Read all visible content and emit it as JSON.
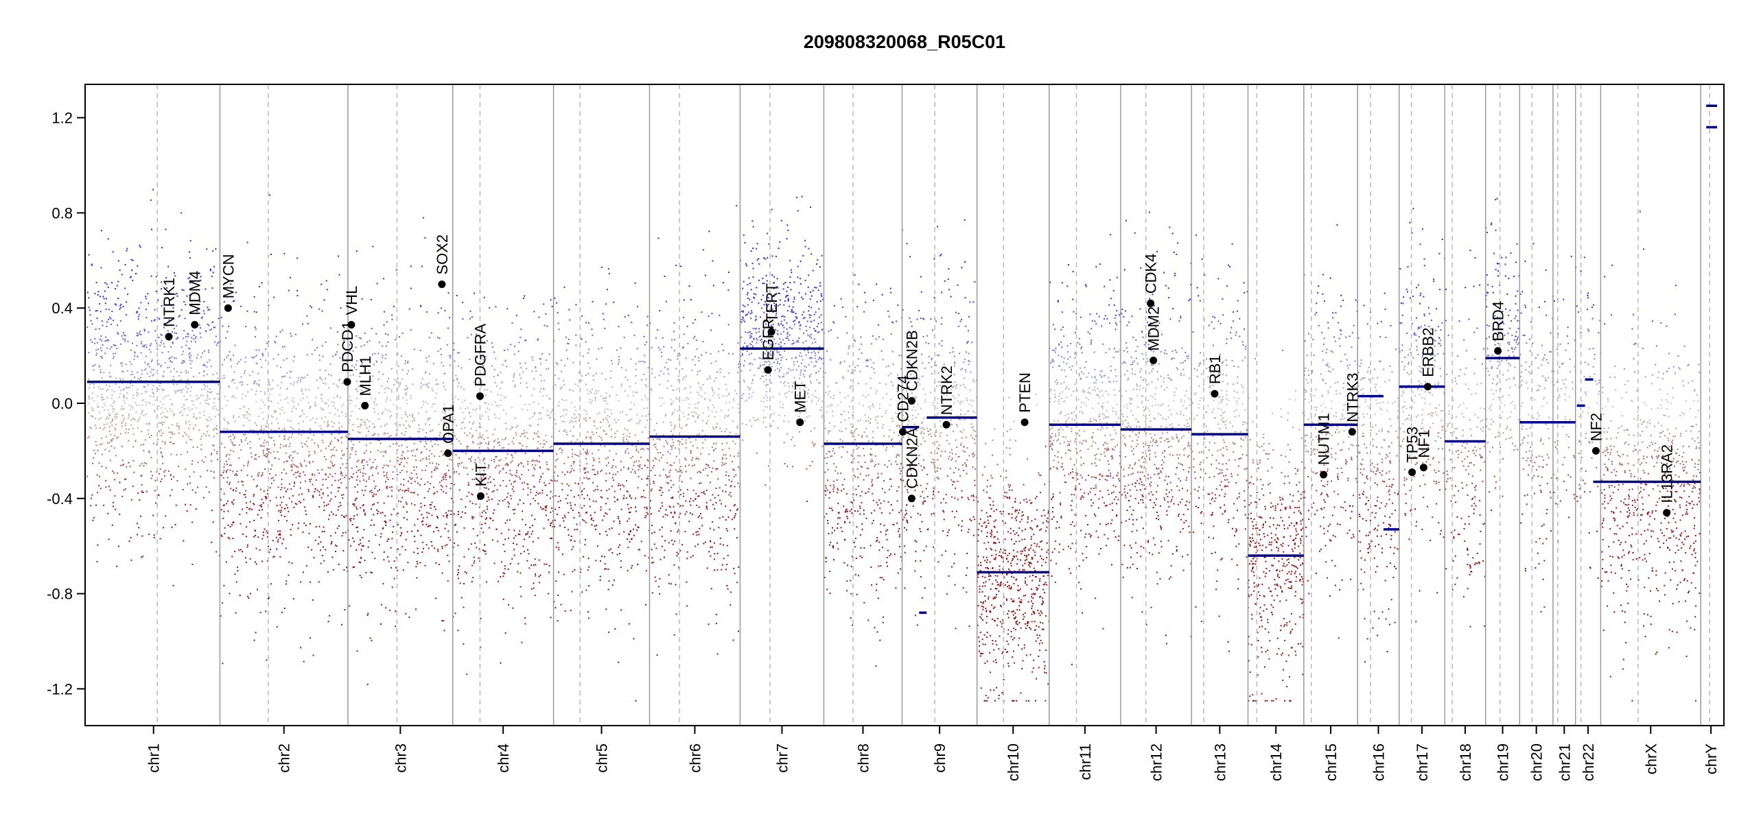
{
  "chart_data": {
    "type": "scatter",
    "title": "209808320068_R05C01",
    "xlabel": "",
    "ylabel": "",
    "ylim": [
      -1.35,
      1.35
    ],
    "y_ticks": [
      -1.2,
      -0.8,
      -0.4,
      0.0,
      0.4,
      0.8,
      1.2
    ],
    "y_tick_labels": [
      "-1.2",
      "-0.8",
      "-0.4",
      "0.0",
      "0.4",
      "0.8",
      "1.2"
    ],
    "x_range": [
      0,
      2400
    ],
    "grid": false,
    "chromosomes": [
      {
        "name": "chr1",
        "start": 0,
        "end": 195,
        "centromere": 103,
        "density": 1.0,
        "mean": 0.05,
        "spread": 0.27
      },
      {
        "name": "chr2",
        "start": 195,
        "end": 383,
        "centromere": 266,
        "density": 1.0,
        "mean": -0.2,
        "spread": 0.3
      },
      {
        "name": "chr3",
        "start": 383,
        "end": 537,
        "centromere": 455,
        "density": 1.0,
        "mean": -0.22,
        "spread": 0.3
      },
      {
        "name": "chr4",
        "start": 537,
        "end": 685,
        "centromere": 577,
        "density": 0.9,
        "mean": -0.25,
        "spread": 0.3
      },
      {
        "name": "chr5",
        "start": 685,
        "end": 826,
        "centromere": 724,
        "density": 0.9,
        "mean": -0.22,
        "spread": 0.3
      },
      {
        "name": "chr6",
        "start": 826,
        "end": 959,
        "centromere": 870,
        "density": 0.9,
        "mean": -0.2,
        "spread": 0.3
      },
      {
        "name": "chr7",
        "start": 959,
        "end": 1082,
        "centromere": 1003,
        "density": 1.0,
        "mean": 0.25,
        "spread": 0.2
      },
      {
        "name": "chr8",
        "start": 1082,
        "end": 1197,
        "centromere": 1125,
        "density": 0.85,
        "mean": -0.25,
        "spread": 0.3
      },
      {
        "name": "chr9",
        "start": 1197,
        "end": 1307,
        "centromere": 1245,
        "density": 0.85,
        "mean": -0.1,
        "spread": 0.3
      },
      {
        "name": "chr10",
        "start": 1307,
        "end": 1413,
        "centromere": 1346,
        "density": 1.1,
        "mean": -0.72,
        "spread": 0.25
      },
      {
        "name": "chr11",
        "start": 1413,
        "end": 1518,
        "centromere": 1453,
        "density": 1.0,
        "mean": -0.1,
        "spread": 0.3
      },
      {
        "name": "chr12",
        "start": 1518,
        "end": 1622,
        "centromere": 1555,
        "density": 1.0,
        "mean": -0.12,
        "spread": 0.3
      },
      {
        "name": "chr13",
        "start": 1622,
        "end": 1705,
        "centromere": 1640,
        "density": 0.7,
        "mean": -0.15,
        "spread": 0.32
      },
      {
        "name": "chr14",
        "start": 1705,
        "end": 1787,
        "centromere": 1718,
        "density": 1.0,
        "mean": -0.65,
        "spread": 0.3
      },
      {
        "name": "chr15",
        "start": 1787,
        "end": 1866,
        "centromere": 1798,
        "density": 0.75,
        "mean": -0.1,
        "spread": 0.3
      },
      {
        "name": "chr16",
        "start": 1866,
        "end": 1927,
        "centromere": 1885,
        "density": 0.8,
        "mean": -0.25,
        "spread": 0.3
      },
      {
        "name": "chr17",
        "start": 1927,
        "end": 1994,
        "centromere": 1945,
        "density": 0.8,
        "mean": 0.05,
        "spread": 0.3
      },
      {
        "name": "chr18",
        "start": 1994,
        "end": 2054,
        "centromere": 2005,
        "density": 0.6,
        "mean": -0.2,
        "spread": 0.3
      },
      {
        "name": "chr19",
        "start": 2054,
        "end": 2104,
        "centromere": 2075,
        "density": 0.7,
        "mean": 0.2,
        "spread": 0.25
      },
      {
        "name": "chr20",
        "start": 2104,
        "end": 2153,
        "centromere": 2122,
        "density": 0.6,
        "mean": -0.1,
        "spread": 0.3
      },
      {
        "name": "chr21",
        "start": 2153,
        "end": 2186,
        "centromere": 2160,
        "density": 0.35,
        "mean": -0.1,
        "spread": 0.3
      },
      {
        "name": "chr22",
        "start": 2186,
        "end": 2223,
        "centromere": 2194,
        "density": 0.4,
        "mean": -0.05,
        "spread": 0.3
      },
      {
        "name": "chrX",
        "start": 2223,
        "end": 2370,
        "centromere": 2278,
        "density": 0.8,
        "mean": -0.35,
        "spread": 0.3
      },
      {
        "name": "chrY",
        "start": 2370,
        "end": 2400,
        "centromere": 2383,
        "density": 0.0,
        "mean": 0.0,
        "spread": 0.0
      }
    ],
    "segments": [
      {
        "x0": 0,
        "x1": 195,
        "y": 0.09
      },
      {
        "x0": 195,
        "x1": 383,
        "y": -0.12
      },
      {
        "x0": 383,
        "x1": 537,
        "y": -0.15
      },
      {
        "x0": 537,
        "x1": 685,
        "y": -0.2
      },
      {
        "x0": 685,
        "x1": 826,
        "y": -0.17
      },
      {
        "x0": 826,
        "x1": 959,
        "y": -0.14
      },
      {
        "x0": 959,
        "x1": 1082,
        "y": 0.23
      },
      {
        "x0": 1082,
        "x1": 1197,
        "y": -0.17
      },
      {
        "x0": 1197,
        "x1": 1222,
        "y": -0.1
      },
      {
        "x0": 1222,
        "x1": 1233,
        "y": -0.88
      },
      {
        "x0": 1233,
        "x1": 1307,
        "y": -0.06
      },
      {
        "x0": 1307,
        "x1": 1413,
        "y": -0.71
      },
      {
        "x0": 1413,
        "x1": 1518,
        "y": -0.09
      },
      {
        "x0": 1518,
        "x1": 1622,
        "y": -0.11
      },
      {
        "x0": 1622,
        "x1": 1705,
        "y": -0.13
      },
      {
        "x0": 1705,
        "x1": 1787,
        "y": -0.64
      },
      {
        "x0": 1787,
        "x1": 1866,
        "y": -0.09
      },
      {
        "x0": 1866,
        "x1": 1904,
        "y": 0.03
      },
      {
        "x0": 1904,
        "x1": 1927,
        "y": -0.53
      },
      {
        "x0": 1927,
        "x1": 1994,
        "y": 0.07
      },
      {
        "x0": 1994,
        "x1": 2054,
        "y": -0.16
      },
      {
        "x0": 2054,
        "x1": 2104,
        "y": 0.19
      },
      {
        "x0": 2104,
        "x1": 2153,
        "y": -0.08
      },
      {
        "x0": 2153,
        "x1": 2186,
        "y": -0.08
      },
      {
        "x0": 2188,
        "x1": 2200,
        "y": -0.01
      },
      {
        "x0": 2200,
        "x1": 2212,
        "y": 0.1
      },
      {
        "x0": 2212,
        "x1": 2370,
        "y": -0.33
      },
      {
        "x0": 2378,
        "x1": 2394,
        "y": 1.25
      },
      {
        "x0": 2378,
        "x1": 2394,
        "y": 1.16
      }
    ],
    "genes": [
      {
        "name": "NTRK1",
        "x": 120,
        "y": 0.28
      },
      {
        "name": "MDM4",
        "x": 158,
        "y": 0.33
      },
      {
        "name": "MYCN",
        "x": 207,
        "y": 0.4
      },
      {
        "name": "PDCD1",
        "x": 382,
        "y": 0.09
      },
      {
        "name": "VHL",
        "x": 388,
        "y": 0.33
      },
      {
        "name": "MLH1",
        "x": 408,
        "y": -0.01
      },
      {
        "name": "SOX2",
        "x": 521,
        "y": 0.5
      },
      {
        "name": "OPA1",
        "x": 530,
        "y": -0.21
      },
      {
        "name": "PDGFRA",
        "x": 577,
        "y": 0.03
      },
      {
        "name": "KIT",
        "x": 578,
        "y": -0.39
      },
      {
        "name": "EGFR",
        "x": 1000,
        "y": 0.14
      },
      {
        "name": "TERT",
        "x": 1005,
        "y": 0.3
      },
      {
        "name": "MET",
        "x": 1047,
        "y": -0.08
      },
      {
        "name": "CD274",
        "x": 1198,
        "y": -0.12
      },
      {
        "name": "CDKN2B",
        "x": 1211,
        "y": 0.01
      },
      {
        "name": "CDKN2A",
        "x": 1211,
        "y": -0.4
      },
      {
        "name": "NTRK2",
        "x": 1262,
        "y": -0.09
      },
      {
        "name": "PTEN",
        "x": 1377,
        "y": -0.08
      },
      {
        "name": "MDM2",
        "x": 1566,
        "y": 0.18
      },
      {
        "name": "CDK4",
        "x": 1562,
        "y": 0.42
      },
      {
        "name": "RB1",
        "x": 1656,
        "y": 0.04
      },
      {
        "name": "NUTM1",
        "x": 1816,
        "y": -0.3
      },
      {
        "name": "NTRK3",
        "x": 1858,
        "y": -0.12
      },
      {
        "name": "TP53",
        "x": 1946,
        "y": -0.29
      },
      {
        "name": "NF1",
        "x": 1963,
        "y": -0.27
      },
      {
        "name": "ERBB2",
        "x": 1969,
        "y": 0.07
      },
      {
        "name": "BRD4",
        "x": 2072,
        "y": 0.22
      },
      {
        "name": "NF2",
        "x": 2216,
        "y": -0.2
      },
      {
        "name": "IL13RA2",
        "x": 2320,
        "y": -0.46
      }
    ]
  }
}
